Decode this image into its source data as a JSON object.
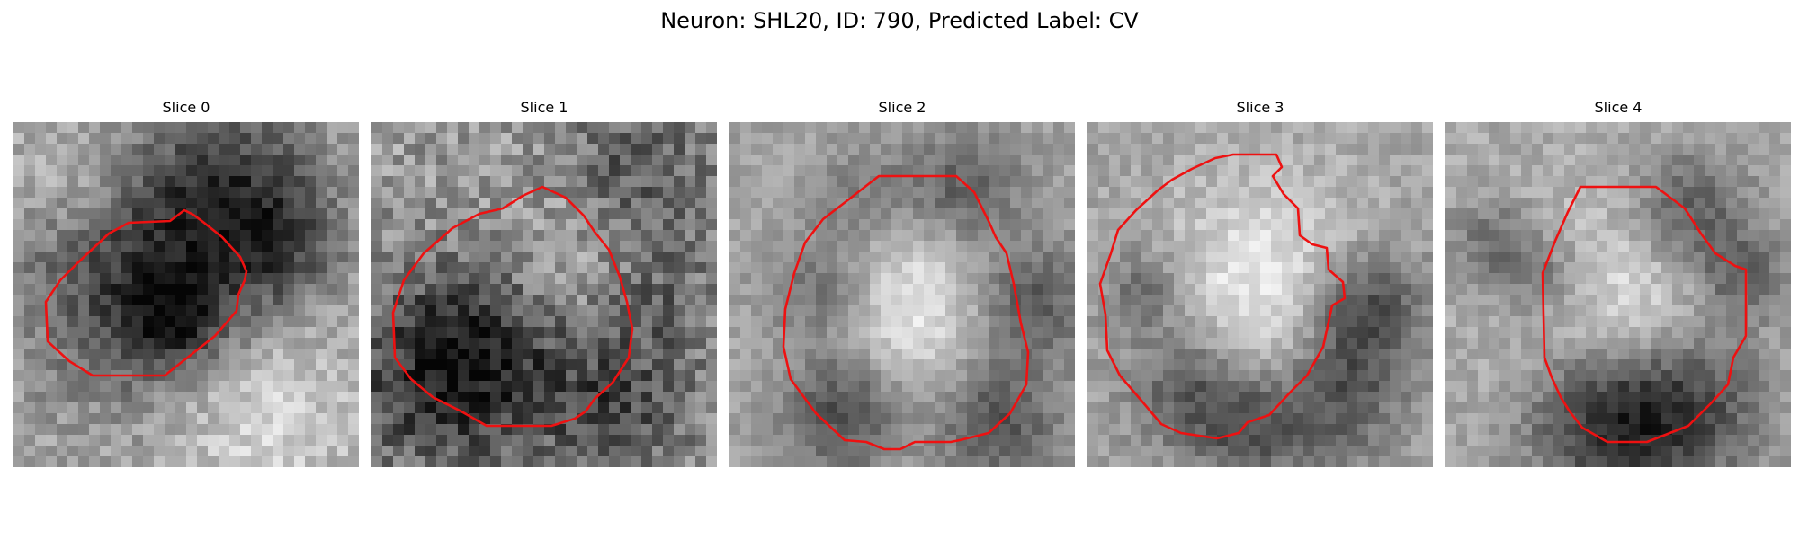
{
  "title": "Neuron: SHL20, ID: 790, Predicted Label: CV",
  "panels": [
    {
      "title": "Slice 0"
    },
    {
      "title": "Slice 1"
    },
    {
      "title": "Slice 2"
    },
    {
      "title": "Slice 3"
    },
    {
      "title": "Slice 4"
    }
  ],
  "colors": {
    "contour": "#ee1111",
    "background": "#ffffff"
  }
}
